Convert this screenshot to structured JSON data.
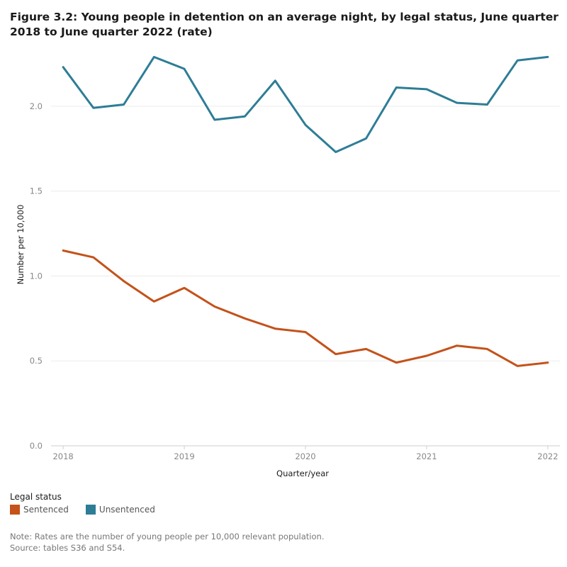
{
  "title": "Figure 3.2: Young people in detention on an average night, by legal status, June quarter 2018 to June quarter 2022 (rate)",
  "legend": {
    "title": "Legal status",
    "items": [
      {
        "label": "Sentenced",
        "color": "#c4521a"
      },
      {
        "label": "Unsentenced",
        "color": "#2e7d96"
      }
    ]
  },
  "notes": {
    "note": "Note: Rates are the number of young people per 10,000 relevant population.",
    "source": "Source: tables S36 and S54."
  },
  "chart_data": {
    "type": "line",
    "xlabel": "Quarter/year",
    "ylabel": "Number per 10,000",
    "x": [
      2018.0,
      2018.25,
      2018.5,
      2018.75,
      2019.0,
      2019.25,
      2019.5,
      2019.75,
      2020.0,
      2020.25,
      2020.5,
      2020.75,
      2021.0,
      2021.25,
      2021.5,
      2021.75,
      2022.0
    ],
    "xticks": [
      "2018",
      "2019",
      "2020",
      "2021",
      "2022"
    ],
    "xlim": [
      2017.9,
      2022.1
    ],
    "ylim": [
      0,
      2.35
    ],
    "yticks": [
      "0.0",
      "0.5",
      "1.0",
      "1.5",
      "2.0"
    ],
    "grid": true,
    "series": [
      {
        "name": "Sentenced",
        "color": "#c4521a",
        "values": [
          1.15,
          1.11,
          0.97,
          0.85,
          0.93,
          0.82,
          0.75,
          0.69,
          0.67,
          0.54,
          0.57,
          0.49,
          0.53,
          0.59,
          0.57,
          0.47,
          0.49
        ]
      },
      {
        "name": "Unsentenced",
        "color": "#2e7d96",
        "values": [
          2.23,
          1.99,
          2.01,
          2.29,
          2.22,
          1.92,
          1.94,
          2.15,
          1.89,
          1.73,
          1.81,
          2.11,
          2.1,
          2.02,
          2.01,
          2.27,
          2.29
        ]
      }
    ]
  }
}
